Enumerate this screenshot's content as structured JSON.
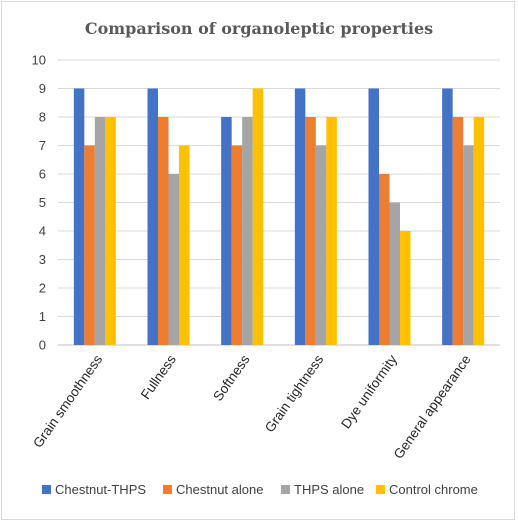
{
  "chart_data": {
    "type": "bar",
    "title": "Comparison of organoleptic properties",
    "xlabel": "",
    "ylabel": "",
    "ylim": [
      0,
      10
    ],
    "yticks": [
      0,
      1,
      2,
      3,
      4,
      5,
      6,
      7,
      8,
      9,
      10
    ],
    "grid": true,
    "legend_position": "bottom",
    "categories": [
      "Grain smoothness",
      "Fullness",
      "Softness",
      "Grain tightness",
      "Dye uniformity",
      "General appearance"
    ],
    "series": [
      {
        "name": "Chestnut-THPS",
        "color": "#4472C4",
        "values": [
          9,
          9,
          8,
          9,
          9,
          9
        ]
      },
      {
        "name": "Chestnut alone",
        "color": "#ED7D31",
        "values": [
          7,
          8,
          7,
          8,
          6,
          8
        ]
      },
      {
        "name": "THPS alone",
        "color": "#A5A5A5",
        "values": [
          8,
          6,
          8,
          7,
          5,
          7
        ]
      },
      {
        "name": "Control chrome",
        "color": "#FFC000",
        "values": [
          8,
          7,
          9,
          8,
          4,
          8
        ]
      }
    ]
  }
}
